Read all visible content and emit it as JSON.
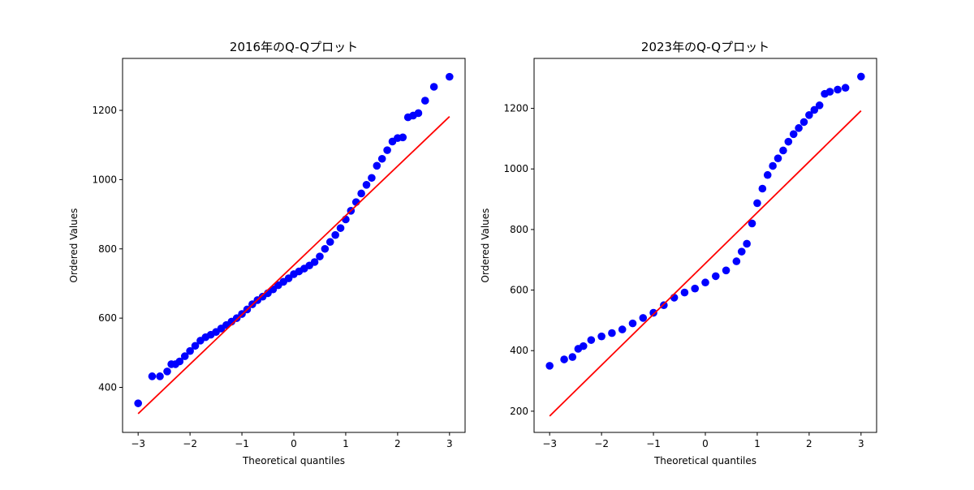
{
  "chart_data": [
    {
      "type": "scatter",
      "title": "2016年のQ-Qプロット",
      "xlabel": "Theoretical quantiles",
      "ylabel": "Ordered Values",
      "xlim": [
        -3.3,
        3.3
      ],
      "ylim": [
        270,
        1350
      ],
      "xticks": [
        -3,
        -2,
        -1,
        0,
        1,
        2,
        3
      ],
      "yticks": [
        400,
        600,
        800,
        1000,
        1200
      ],
      "grid": false,
      "marker_color": "#0000ff",
      "fit_line": {
        "color": "#ff0000",
        "slope": 143,
        "intercept": 753,
        "x_range": [
          -3,
          3
        ]
      },
      "points": [
        [
          -3,
          354
        ],
        [
          -2.73,
          432
        ],
        [
          -2.58,
          432
        ],
        [
          -2.44,
          446
        ],
        [
          -2.36,
          467
        ],
        [
          -2.28,
          467
        ],
        [
          -2.2,
          475
        ],
        [
          -2.1,
          490
        ],
        [
          -2.0,
          505
        ],
        [
          -1.9,
          520
        ],
        [
          -1.8,
          535
        ],
        [
          -1.7,
          545
        ],
        [
          -1.6,
          552
        ],
        [
          -1.5,
          560
        ],
        [
          -1.4,
          570
        ],
        [
          -1.3,
          580
        ],
        [
          -1.2,
          590
        ],
        [
          -1.1,
          600
        ],
        [
          -1.0,
          612
        ],
        [
          -0.9,
          625
        ],
        [
          -0.8,
          640
        ],
        [
          -0.7,
          652
        ],
        [
          -0.6,
          662
        ],
        [
          -0.5,
          672
        ],
        [
          -0.4,
          683
        ],
        [
          -0.3,
          695
        ],
        [
          -0.2,
          705
        ],
        [
          -0.1,
          715
        ],
        [
          0,
          727
        ],
        [
          0.1,
          735
        ],
        [
          0.2,
          743
        ],
        [
          0.3,
          752
        ],
        [
          0.4,
          762
        ],
        [
          0.5,
          778
        ],
        [
          0.6,
          800
        ],
        [
          0.7,
          820
        ],
        [
          0.8,
          840
        ],
        [
          0.9,
          860
        ],
        [
          1.0,
          885
        ],
        [
          1.1,
          910
        ],
        [
          1.2,
          935
        ],
        [
          1.3,
          960
        ],
        [
          1.4,
          985
        ],
        [
          1.5,
          1005
        ],
        [
          1.6,
          1040
        ],
        [
          1.7,
          1060
        ],
        [
          1.8,
          1085
        ],
        [
          1.9,
          1110
        ],
        [
          2.0,
          1120
        ],
        [
          2.1,
          1122
        ],
        [
          2.2,
          1180
        ],
        [
          2.3,
          1185
        ],
        [
          2.4,
          1192
        ],
        [
          2.53,
          1228
        ],
        [
          2.7,
          1268
        ],
        [
          3.0,
          1297
        ]
      ]
    },
    {
      "type": "scatter",
      "title": "2023年のQ-Qプロット",
      "xlabel": "Theoretical quantiles",
      "ylabel": "Ordered Values",
      "xlim": [
        -3.3,
        3.3
      ],
      "ylim": [
        130,
        1365
      ],
      "xticks": [
        -3,
        -2,
        -1,
        0,
        1,
        2,
        3
      ],
      "yticks": [
        200,
        400,
        600,
        800,
        1000,
        1200
      ],
      "grid": false,
      "marker_color": "#0000ff",
      "fit_line": {
        "color": "#ff0000",
        "slope": 168,
        "intercept": 688,
        "x_range": [
          -3,
          3
        ]
      },
      "points": [
        [
          -3,
          350
        ],
        [
          -2.72,
          371
        ],
        [
          -2.56,
          379
        ],
        [
          -2.45,
          406
        ],
        [
          -2.35,
          415
        ],
        [
          -2.2,
          435
        ],
        [
          -2.0,
          447
        ],
        [
          -1.8,
          458
        ],
        [
          -1.6,
          470
        ],
        [
          -1.4,
          490
        ],
        [
          -1.2,
          508
        ],
        [
          -1.0,
          525
        ],
        [
          -0.8,
          550
        ],
        [
          -0.6,
          575
        ],
        [
          -0.4,
          592
        ],
        [
          -0.2,
          605
        ],
        [
          0,
          625
        ],
        [
          0.2,
          646
        ],
        [
          0.4,
          665
        ],
        [
          0.6,
          695
        ],
        [
          0.7,
          727
        ],
        [
          0.8,
          753
        ],
        [
          0.9,
          820
        ],
        [
          1.0,
          887
        ],
        [
          1.1,
          935
        ],
        [
          1.2,
          980
        ],
        [
          1.3,
          1010
        ],
        [
          1.4,
          1035
        ],
        [
          1.5,
          1061
        ],
        [
          1.6,
          1090
        ],
        [
          1.7,
          1115
        ],
        [
          1.8,
          1135
        ],
        [
          1.9,
          1155
        ],
        [
          2.0,
          1178
        ],
        [
          2.1,
          1195
        ],
        [
          2.2,
          1210
        ],
        [
          2.3,
          1248
        ],
        [
          2.4,
          1255
        ],
        [
          2.55,
          1262
        ],
        [
          2.7,
          1268
        ],
        [
          3.0,
          1305
        ]
      ]
    }
  ]
}
